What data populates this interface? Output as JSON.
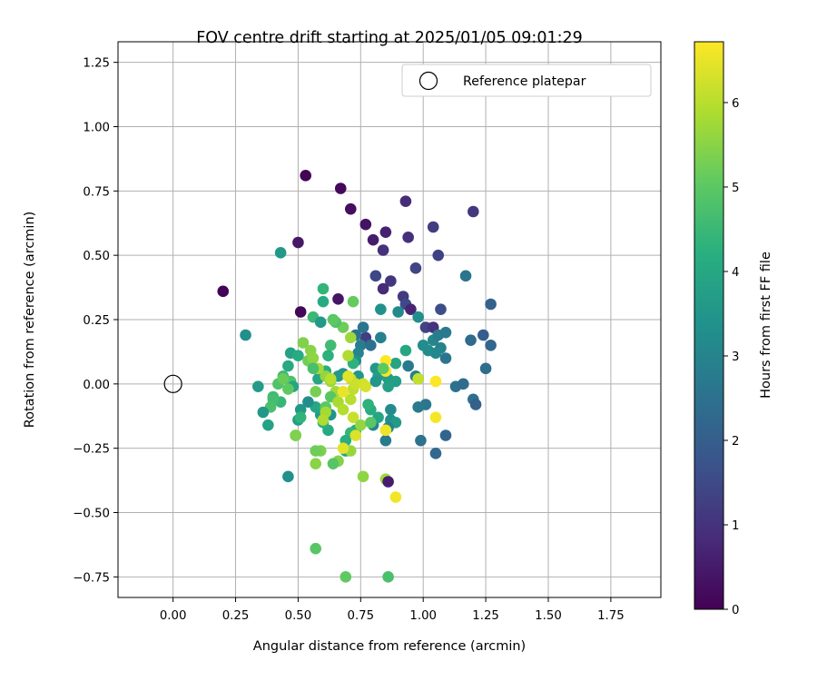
{
  "chart_data": {
    "type": "scatter",
    "title": "FOV centre drift starting at 2025/01/05 09:01:29",
    "xlabel": "Angular distance from reference (arcmin)",
    "ylabel": "Rotation from reference (arcmin)",
    "xlim": [
      -0.22,
      1.95
    ],
    "ylim": [
      -0.83,
      1.33
    ],
    "xticks": [
      "0.00",
      "0.25",
      "0.50",
      "0.75",
      "1.00",
      "1.25",
      "1.50",
      "1.75"
    ],
    "yticks": [
      "1.25",
      "1.00",
      "0.75",
      "0.50",
      "0.25",
      "0.00",
      "−0.25",
      "−0.50",
      "−0.75"
    ],
    "grid": true,
    "legend": {
      "label": "Reference platepar",
      "position": "top-right"
    },
    "colorbar": {
      "label": "Hours from first FF file",
      "min": 0,
      "max": 6.72,
      "ticks": [
        "0",
        "1",
        "2",
        "3",
        "4",
        "5",
        "6"
      ],
      "colormap": "viridis"
    },
    "reference": {
      "x": 0.0,
      "y": 0.0
    },
    "points": [
      [
        0.53,
        0.81,
        0.05
      ],
      [
        0.67,
        0.76,
        0.15
      ],
      [
        0.71,
        0.68,
        0.25
      ],
      [
        0.77,
        0.62,
        0.35
      ],
      [
        0.5,
        0.55,
        0.45
      ],
      [
        0.2,
        0.36,
        0.05
      ],
      [
        0.51,
        0.28,
        0.1
      ],
      [
        0.66,
        0.33,
        0.4
      ],
      [
        0.8,
        0.56,
        0.55
      ],
      [
        0.85,
        0.59,
        0.65
      ],
      [
        0.93,
        0.71,
        0.85
      ],
      [
        0.94,
        0.57,
        0.9
      ],
      [
        1.04,
        0.61,
        1.2
      ],
      [
        1.06,
        0.5,
        1.3
      ],
      [
        1.2,
        0.67,
        1.1
      ],
      [
        0.84,
        0.52,
        0.95
      ],
      [
        0.87,
        0.4,
        1.05
      ],
      [
        0.84,
        0.37,
        0.8
      ],
      [
        0.92,
        0.34,
        1.15
      ],
      [
        0.97,
        0.45,
        1.4
      ],
      [
        0.81,
        0.42,
        1.45
      ],
      [
        0.93,
        0.31,
        1.5
      ],
      [
        1.01,
        0.22,
        1.35
      ],
      [
        1.04,
        0.22,
        1.0
      ],
      [
        1.07,
        0.29,
        1.6
      ],
      [
        0.95,
        0.29,
        0.7
      ],
      [
        1.17,
        0.42,
        2.6
      ],
      [
        1.27,
        0.31,
        2.1
      ],
      [
        1.19,
        0.17,
        2.3
      ],
      [
        1.24,
        0.19,
        2.0
      ],
      [
        1.27,
        0.15,
        2.2
      ],
      [
        1.25,
        0.06,
        2.4
      ],
      [
        1.13,
        -0.01,
        2.5
      ],
      [
        1.16,
        0.0,
        2.35
      ],
      [
        1.2,
        -0.06,
        2.45
      ],
      [
        1.21,
        -0.08,
        2.05
      ],
      [
        1.09,
        -0.2,
        2.15
      ],
      [
        1.05,
        -0.27,
        2.25
      ],
      [
        0.99,
        -0.22,
        2.55
      ],
      [
        1.01,
        -0.08,
        2.65
      ],
      [
        0.98,
        -0.09,
        2.75
      ],
      [
        0.98,
        0.02,
        1.75
      ],
      [
        0.97,
        0.03,
        2.85
      ],
      [
        1.04,
        0.17,
        3.05
      ],
      [
        1.06,
        0.19,
        2.8
      ],
      [
        1.09,
        0.2,
        2.7
      ],
      [
        1.07,
        0.14,
        2.95
      ],
      [
        1.05,
        0.12,
        3.1
      ],
      [
        1.09,
        0.1,
        2.6
      ],
      [
        1.02,
        0.13,
        3.2
      ],
      [
        1.0,
        0.15,
        3.25
      ],
      [
        0.98,
        0.26,
        3.3
      ],
      [
        0.9,
        0.28,
        3.15
      ],
      [
        0.83,
        0.29,
        3.4
      ],
      [
        0.77,
        0.18,
        1.25
      ],
      [
        0.73,
        0.19,
        2.5
      ],
      [
        0.75,
        0.15,
        2.8
      ],
      [
        0.83,
        0.18,
        2.9
      ],
      [
        0.74,
        0.12,
        3.0
      ],
      [
        0.73,
        0.09,
        3.35
      ],
      [
        0.68,
        0.04,
        3.45
      ],
      [
        0.66,
        0.03,
        3.6
      ],
      [
        0.74,
        0.03,
        3.5
      ],
      [
        0.81,
        0.06,
        3.55
      ],
      [
        0.82,
        0.03,
        3.65
      ],
      [
        0.86,
        0.02,
        3.7
      ],
      [
        0.89,
        0.01,
        3.75
      ],
      [
        0.86,
        -0.01,
        3.8
      ],
      [
        0.89,
        0.08,
        3.9
      ],
      [
        0.93,
        0.13,
        4.0
      ],
      [
        0.87,
        -0.1,
        3.2
      ],
      [
        0.87,
        -0.14,
        3.3
      ],
      [
        0.89,
        -0.15,
        3.6
      ],
      [
        0.86,
        -0.17,
        2.95
      ],
      [
        0.85,
        -0.22,
        2.75
      ],
      [
        0.8,
        -0.16,
        3.1
      ],
      [
        0.82,
        -0.13,
        3.95
      ],
      [
        0.79,
        -0.1,
        4.15
      ],
      [
        0.78,
        -0.08,
        4.3
      ],
      [
        0.73,
        -0.18,
        4.1
      ],
      [
        0.71,
        -0.19,
        4.4
      ],
      [
        0.69,
        -0.26,
        3.85
      ],
      [
        0.69,
        -0.22,
        4.2
      ],
      [
        0.62,
        -0.18,
        4.05
      ],
      [
        0.6,
        -0.15,
        4.25
      ],
      [
        0.63,
        -0.12,
        3.45
      ],
      [
        0.59,
        -0.12,
        3.65
      ],
      [
        0.57,
        -0.09,
        4.0
      ],
      [
        0.54,
        -0.07,
        3.25
      ],
      [
        0.51,
        -0.1,
        3.55
      ],
      [
        0.5,
        -0.14,
        3.75
      ],
      [
        0.51,
        -0.13,
        4.35
      ],
      [
        0.49,
        -0.2,
        3.05
      ],
      [
        0.46,
        -0.36,
        3.35
      ],
      [
        0.43,
        -0.07,
        4.45
      ],
      [
        0.4,
        -0.05,
        4.55
      ],
      [
        0.4,
        -0.06,
        4.65
      ],
      [
        0.39,
        -0.09,
        4.75
      ],
      [
        0.36,
        -0.11,
        3.55
      ],
      [
        0.38,
        -0.16,
        3.85
      ],
      [
        0.34,
        -0.01,
        3.65
      ],
      [
        0.29,
        0.19,
        3.3
      ],
      [
        0.43,
        0.51,
        3.55
      ],
      [
        0.47,
        0.12,
        3.85
      ],
      [
        0.5,
        0.11,
        4.1
      ],
      [
        0.46,
        0.07,
        4.05
      ],
      [
        0.44,
        0.03,
        4.5
      ],
      [
        0.47,
        0.01,
        4.8
      ],
      [
        0.48,
        -0.01,
        3.95
      ],
      [
        0.42,
        0.0,
        4.85
      ],
      [
        0.46,
        -0.02,
        5.05
      ],
      [
        0.44,
        0.02,
        5.15
      ],
      [
        0.52,
        0.16,
        5.4
      ],
      [
        0.55,
        0.13,
        5.5
      ],
      [
        0.54,
        0.09,
        5.25
      ],
      [
        0.56,
        0.1,
        5.55
      ],
      [
        0.58,
        0.02,
        3.9
      ],
      [
        0.61,
        0.05,
        4.2
      ],
      [
        0.61,
        0.03,
        5.6
      ],
      [
        0.63,
        0.01,
        5.7
      ],
      [
        0.65,
        -0.03,
        5.75
      ],
      [
        0.63,
        -0.05,
        4.95
      ],
      [
        0.61,
        -0.09,
        5.0
      ],
      [
        0.61,
        -0.11,
        5.8
      ],
      [
        0.6,
        -0.14,
        5.9
      ],
      [
        0.57,
        -0.03,
        5.3
      ],
      [
        0.66,
        -0.07,
        5.85
      ],
      [
        0.68,
        -0.1,
        5.95
      ],
      [
        0.71,
        -0.06,
        6.0
      ],
      [
        0.72,
        -0.02,
        6.05
      ],
      [
        0.71,
        0.02,
        6.1
      ],
      [
        0.73,
        0.0,
        6.2
      ],
      [
        0.76,
        0.0,
        6.25
      ],
      [
        0.77,
        -0.01,
        6.3
      ],
      [
        0.7,
        0.03,
        6.4
      ],
      [
        0.68,
        -0.03,
        6.5
      ],
      [
        0.72,
        -0.13,
        6.15
      ],
      [
        0.73,
        -0.2,
        6.35
      ],
      [
        0.71,
        -0.26,
        5.65
      ],
      [
        0.66,
        -0.3,
        5.45
      ],
      [
        0.64,
        -0.31,
        4.9
      ],
      [
        0.59,
        -0.26,
        5.35
      ],
      [
        0.57,
        -0.26,
        5.2
      ],
      [
        0.57,
        -0.31,
        5.5
      ],
      [
        0.49,
        -0.2,
        5.4
      ],
      [
        0.68,
        -0.25,
        6.45
      ],
      [
        0.75,
        -0.16,
        5.6
      ],
      [
        0.76,
        -0.36,
        5.55
      ],
      [
        0.79,
        -0.15,
        4.95
      ],
      [
        0.85,
        -0.18,
        6.55
      ],
      [
        0.85,
        -0.37,
        5.75
      ],
      [
        0.89,
        -0.44,
        6.6
      ],
      [
        0.86,
        -0.38,
        0.55
      ],
      [
        1.05,
        0.01,
        6.7
      ],
      [
        1.05,
        -0.13,
        6.65
      ],
      [
        0.85,
        0.09,
        6.72
      ],
      [
        0.85,
        0.05,
        6.68
      ],
      [
        0.79,
        0.15,
        2.45
      ],
      [
        0.76,
        0.22,
        2.6
      ],
      [
        0.72,
        0.08,
        4.3
      ],
      [
        0.7,
        0.11,
        5.9
      ],
      [
        0.71,
        0.18,
        5.7
      ],
      [
        0.68,
        0.22,
        5.2
      ],
      [
        0.65,
        0.24,
        4.8
      ],
      [
        0.64,
        0.25,
        5.0
      ],
      [
        0.63,
        0.15,
        4.6
      ],
      [
        0.62,
        0.11,
        4.25
      ],
      [
        0.58,
        0.06,
        5.8
      ],
      [
        0.56,
        0.06,
        4.7
      ],
      [
        0.6,
        0.37,
        4.4
      ],
      [
        0.6,
        0.32,
        4.1
      ],
      [
        0.56,
        0.26,
        4.5
      ],
      [
        0.63,
        0.02,
        6.0
      ],
      [
        0.72,
        0.32,
        5.1
      ],
      [
        0.59,
        0.24,
        3.6
      ],
      [
        0.81,
        0.01,
        3.5
      ],
      [
        0.84,
        0.06,
        5.0
      ],
      [
        0.57,
        -0.64,
        4.95
      ],
      [
        0.69,
        -0.75,
        5.05
      ],
      [
        0.86,
        -0.75,
        4.75
      ],
      [
        0.94,
        0.07,
        2.7
      ],
      [
        0.98,
        0.02,
        6.1
      ]
    ]
  }
}
